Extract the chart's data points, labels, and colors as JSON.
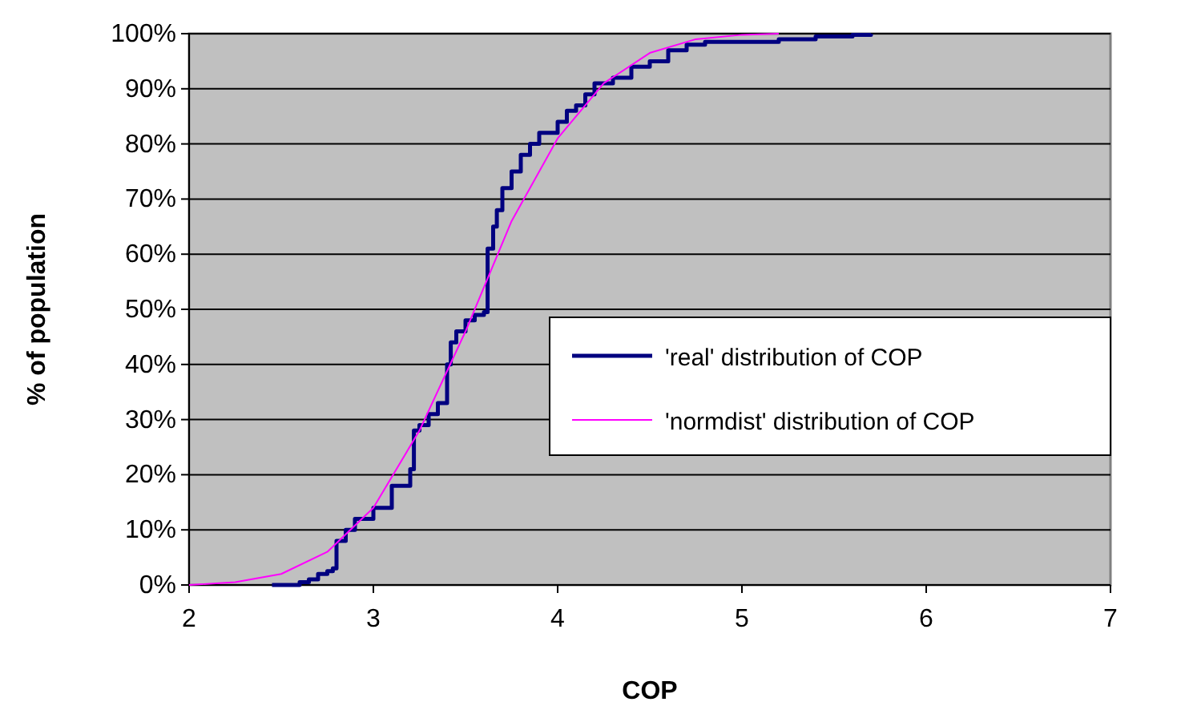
{
  "chart_data": {
    "type": "line",
    "xlabel": "COP",
    "ylabel": "% of population",
    "series": [
      {
        "name": "'real' distribution of COP",
        "type": "step",
        "color": "#000080",
        "x": [
          2.45,
          2.6,
          2.65,
          2.7,
          2.75,
          2.78,
          2.8,
          2.85,
          2.9,
          3.0,
          3.1,
          3.2,
          3.22,
          3.25,
          3.3,
          3.35,
          3.4,
          3.42,
          3.45,
          3.5,
          3.55,
          3.6,
          3.62,
          3.65,
          3.67,
          3.7,
          3.75,
          3.8,
          3.85,
          3.9,
          4.0,
          4.05,
          4.1,
          4.15,
          4.2,
          4.3,
          4.4,
          4.5,
          4.6,
          4.7,
          4.8,
          5.0,
          5.2,
          5.4,
          5.6,
          5.7
        ],
        "values": [
          0,
          0.5,
          1,
          2,
          2.5,
          3,
          8,
          10,
          12,
          14,
          18,
          21,
          28,
          29,
          31,
          33,
          40,
          44,
          46,
          48,
          49,
          49.5,
          61,
          65,
          68,
          72,
          75,
          78,
          80,
          82,
          84,
          86,
          87,
          89,
          91,
          92,
          94,
          95,
          97,
          98,
          98.5,
          98.5,
          99,
          99.5,
          99.8,
          100
        ]
      },
      {
        "name": "'normdist' distribution of COP",
        "color": "#ff00ff",
        "x": [
          2.0,
          2.25,
          2.5,
          2.75,
          3.0,
          3.25,
          3.5,
          3.75,
          4.0,
          4.25,
          4.5,
          4.75,
          5.0,
          5.2
        ],
        "values": [
          0,
          0.5,
          2,
          6,
          14,
          28,
          46,
          66,
          81,
          91,
          96.5,
          99,
          99.8,
          100
        ]
      }
    ],
    "xlim": [
      2,
      7
    ],
    "xticks": [
      2,
      3,
      4,
      5,
      6,
      7
    ],
    "ylim": [
      0,
      100
    ],
    "yticks": [
      {
        "value": 0,
        "label": "0%"
      },
      {
        "value": 10,
        "label": "10%"
      },
      {
        "value": 20,
        "label": "20%"
      },
      {
        "value": 30,
        "label": "30%"
      },
      {
        "value": 40,
        "label": "40%"
      },
      {
        "value": 50,
        "label": "50%"
      },
      {
        "value": 60,
        "label": "60%"
      },
      {
        "value": 70,
        "label": "70%"
      },
      {
        "value": 80,
        "label": "80%"
      },
      {
        "value": 90,
        "label": "90%"
      },
      {
        "value": 100,
        "label": "100%"
      }
    ],
    "grid": "y",
    "legend": "right"
  }
}
